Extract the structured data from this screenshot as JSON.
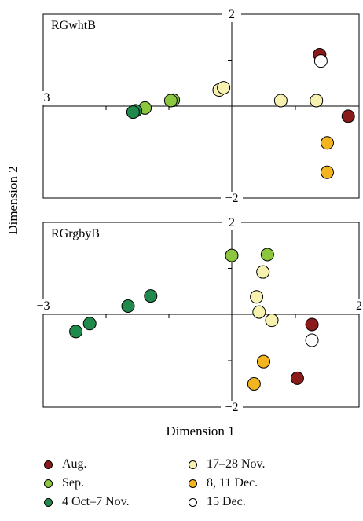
{
  "chart_data": {
    "type": "scatter",
    "xlabel": "Dimension 1",
    "ylabel": "Dimension 2",
    "panels": [
      {
        "title": "RGwhtB",
        "xlim": [
          -3,
          2
        ],
        "ylim": [
          -2,
          2
        ],
        "tick_labels": {
          "x_min": "−3",
          "y_max": "2",
          "y_min": "−2"
        },
        "points": [
          {
            "group": "Aug.",
            "x": 1.38,
            "y": 1.12
          },
          {
            "group": "Aug.",
            "x": 1.83,
            "y": -0.22
          },
          {
            "group": "15 Dec.",
            "x": 1.4,
            "y": 0.98
          },
          {
            "group": "17–28 Nov.",
            "x": -0.2,
            "y": 0.35
          },
          {
            "group": "17–28 Nov.",
            "x": -0.13,
            "y": 0.4
          },
          {
            "group": "17–28 Nov.",
            "x": 0.77,
            "y": 0.12
          },
          {
            "group": "17–28 Nov.",
            "x": 1.33,
            "y": 0.12
          },
          {
            "group": "8, 11 Dec.",
            "x": 1.5,
            "y": -0.8
          },
          {
            "group": "8, 11 Dec.",
            "x": 1.5,
            "y": -1.44
          },
          {
            "group": "Sep.",
            "x": -0.93,
            "y": 0.13
          },
          {
            "group": "Sep.",
            "x": -0.97,
            "y": 0.12
          },
          {
            "group": "Sep.",
            "x": -1.38,
            "y": -0.04
          },
          {
            "group": "4 Oct–7 Nov.",
            "x": -1.53,
            "y": -0.1
          },
          {
            "group": "4 Oct–7 Nov.",
            "x": -1.57,
            "y": -0.13
          }
        ]
      },
      {
        "title": "RGrgbyB",
        "xlim": [
          -3,
          2
        ],
        "ylim": [
          -2,
          2
        ],
        "tick_labels": {
          "x_min": "−3",
          "x_max": "2",
          "y_max": "2",
          "y_min": "−2"
        },
        "points": [
          {
            "group": "Sep.",
            "x": 0.0,
            "y": 1.28
          },
          {
            "group": "Sep.",
            "x": 0.56,
            "y": 1.3
          },
          {
            "group": "17–28 Nov.",
            "x": 0.49,
            "y": 0.92
          },
          {
            "group": "17–28 Nov.",
            "x": 0.39,
            "y": 0.38
          },
          {
            "group": "17–28 Nov.",
            "x": 0.43,
            "y": 0.05
          },
          {
            "group": "17–28 Nov.",
            "x": 0.63,
            "y": -0.13
          },
          {
            "group": "Aug.",
            "x": 1.26,
            "y": -0.22
          },
          {
            "group": "Aug.",
            "x": 1.03,
            "y": -1.38
          },
          {
            "group": "15 Dec.",
            "x": 1.26,
            "y": -0.56
          },
          {
            "group": "8, 11 Dec.",
            "x": 0.5,
            "y": -1.02
          },
          {
            "group": "8, 11 Dec.",
            "x": 0.35,
            "y": -1.5
          },
          {
            "group": "4 Oct–7 Nov.",
            "x": -1.29,
            "y": 0.4
          },
          {
            "group": "4 Oct–7 Nov.",
            "x": -1.65,
            "y": 0.18
          },
          {
            "group": "4 Oct–7 Nov.",
            "x": -2.26,
            "y": -0.2
          },
          {
            "group": "4 Oct–7 Nov.",
            "x": -2.48,
            "y": -0.37
          }
        ]
      }
    ],
    "legend": [
      {
        "label": "Aug.",
        "color": "#8b1a1a",
        "filled": true
      },
      {
        "label": "Sep.",
        "color": "#8cc63f",
        "filled": true
      },
      {
        "label": "4 Oct–7 Nov.",
        "color": "#1f8a4c",
        "filled": true
      },
      {
        "label": "17–28 Nov.",
        "color": "#f7f1b0",
        "filled": true
      },
      {
        "label": "8, 11 Dec.",
        "color": "#f2b51f",
        "filled": true
      },
      {
        "label": "15 Dec.",
        "color": "#ffffff",
        "filled": false
      }
    ]
  }
}
